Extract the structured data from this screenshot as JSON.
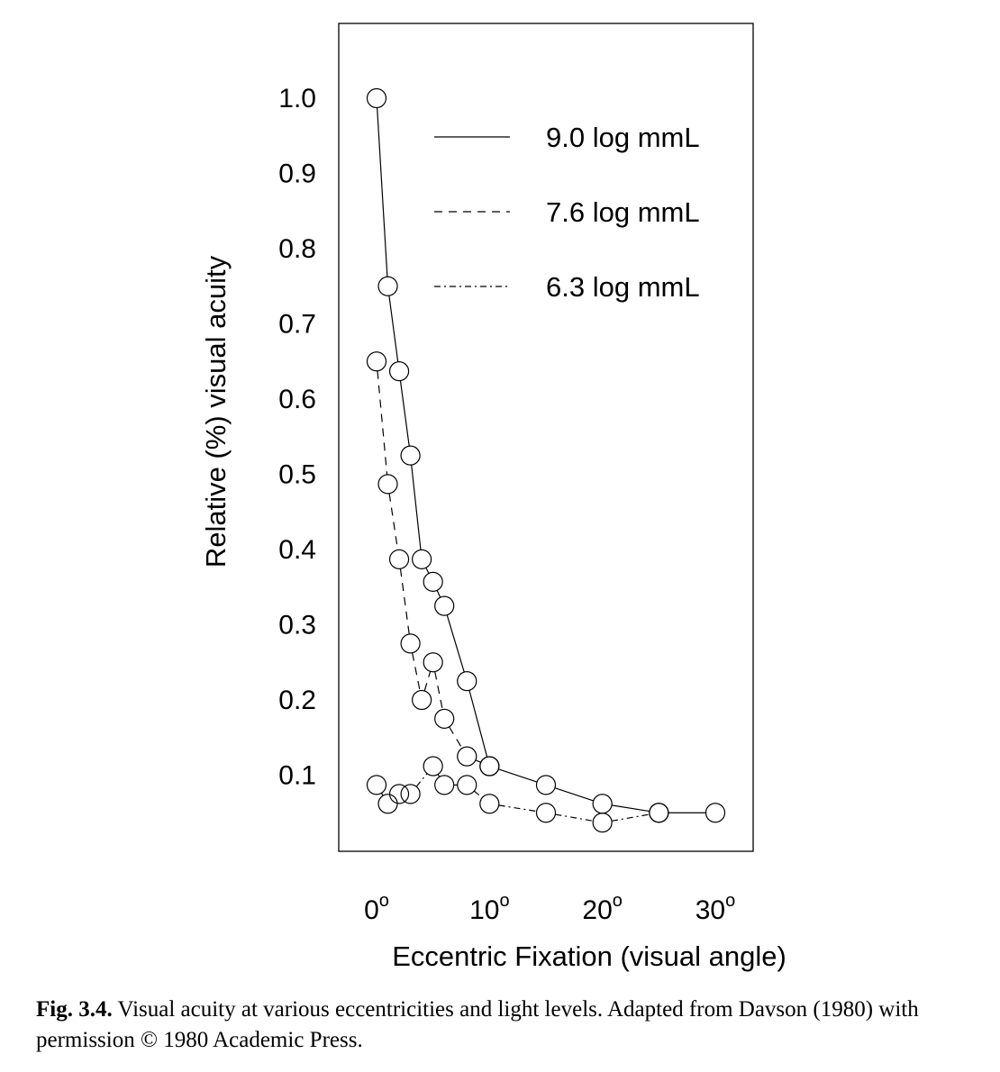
{
  "chart_data": {
    "type": "line",
    "xlabel": "Eccentric Fixation (visual angle)",
    "ylabel": "Relative (%) visual acuity",
    "xlim": [
      -2,
      34
    ],
    "ylim": [
      0,
      1.1
    ],
    "x_ticks": [
      {
        "value": 0,
        "label": "0",
        "sup": "o"
      },
      {
        "value": 10,
        "label": "10",
        "sup": "o"
      },
      {
        "value": 20,
        "label": "20",
        "sup": "o"
      },
      {
        "value": 30,
        "label": "30",
        "sup": "o"
      }
    ],
    "y_ticks": [
      {
        "value": 0.1,
        "label": "0.1"
      },
      {
        "value": 0.2,
        "label": "0.2"
      },
      {
        "value": 0.3,
        "label": "0.3"
      },
      {
        "value": 0.4,
        "label": "0.4"
      },
      {
        "value": 0.5,
        "label": "0.5"
      },
      {
        "value": 0.6,
        "label": "0.6"
      },
      {
        "value": 0.7,
        "label": "0.7"
      },
      {
        "value": 0.8,
        "label": "0.8"
      },
      {
        "value": 0.9,
        "label": "0.9"
      },
      {
        "value": 1.0,
        "label": "1.0"
      }
    ],
    "legend_position": "top-right",
    "series": [
      {
        "name": "9.0 log mmL",
        "line_style": "solid",
        "x": [
          0,
          1,
          2,
          3,
          4,
          5,
          6,
          8,
          10,
          15,
          20,
          25,
          30
        ],
        "y": [
          1.0,
          0.75,
          0.637,
          0.525,
          0.387,
          0.357,
          0.325,
          0.225,
          0.112,
          0.087,
          0.062,
          0.05,
          0.05
        ]
      },
      {
        "name": "7.6 log mmL",
        "line_style": "dashed",
        "x": [
          0,
          1,
          2,
          3,
          4,
          5,
          6,
          8,
          10
        ],
        "y": [
          0.65,
          0.487,
          0.387,
          0.275,
          0.2,
          0.25,
          0.175,
          0.125,
          0.112
        ]
      },
      {
        "name": "6.3 log mmL",
        "line_style": "dash-dot",
        "x": [
          0,
          1,
          2,
          3,
          5,
          6,
          8,
          10,
          15,
          20,
          25
        ],
        "y": [
          0.087,
          0.062,
          0.075,
          0.075,
          0.112,
          0.087,
          0.087,
          0.062,
          0.05,
          0.037,
          0.05
        ]
      }
    ]
  },
  "caption": {
    "label": "Fig. 3.4.",
    "text": " Visual acuity at various eccentricities and light levels. Adapted from Davson (1980) with permission © 1980 Academic Press."
  }
}
